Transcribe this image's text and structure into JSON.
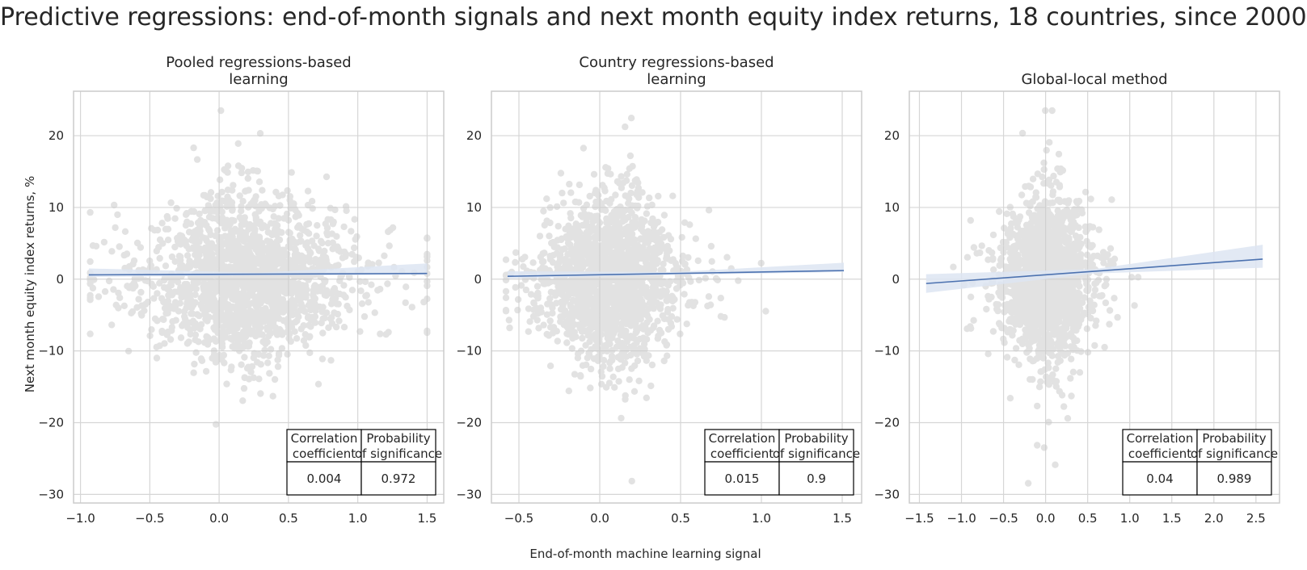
{
  "title": "Predictive regressions: end-of-month signals and next month equity index returns, 18 countries, since 2000",
  "xlabel": "End-of-month machine learning signal",
  "ylabel": "Next month equity index returns, %",
  "colors": {
    "points": "#cccccc",
    "line": "#4c72b0",
    "band": "#dde5f2",
    "grid": "#d6d6d6",
    "axes": "#cccccc"
  },
  "chart_data": [
    {
      "type": "scatter",
      "title": [
        "Pooled regressions-based",
        "learning"
      ],
      "xlim": [
        -1.05,
        1.62
      ],
      "ylim": [
        -31.2,
        26.2
      ],
      "xticks": [
        -1.0,
        -0.5,
        0.0,
        0.5,
        1.0,
        1.5
      ],
      "xtick_labels": [
        "−1.0",
        "−0.5",
        "0.0",
        "0.5",
        "1.0",
        "1.5"
      ],
      "yticks": [
        -30,
        -20,
        -10,
        0,
        10,
        20
      ],
      "ytick_labels": [
        "−30",
        "−20",
        "−10",
        "0",
        "10",
        "20"
      ],
      "regression": {
        "x": [
          -0.94,
          1.5
        ],
        "y": [
          0.6,
          0.8
        ],
        "ci": [
          [
            0.9,
            0.3
          ],
          [
            0.2,
            0.2
          ],
          [
            1.4,
            0.2
          ]
        ]
      },
      "scatter_shape": {
        "center": 0.2,
        "spread": 0.33,
        "ystd": 6.0,
        "xmin": -0.93,
        "xmax": 1.5,
        "n": 1800,
        "seed": 11
      },
      "table": {
        "headers": [
          [
            "Correlation",
            "coefficient"
          ],
          [
            "Probability",
            "of significance"
          ]
        ],
        "values": [
          "0.004",
          "0.972"
        ]
      }
    },
    {
      "type": "scatter",
      "title": [
        "Country regressions-based",
        "learning"
      ],
      "xlim": [
        -0.67,
        1.62
      ],
      "ylim": [
        -31.2,
        26.2
      ],
      "xticks": [
        -0.5,
        0.0,
        0.5,
        1.0,
        1.5
      ],
      "xtick_labels": [
        "−0.5",
        "0.0",
        "0.5",
        "1.0",
        "1.5"
      ],
      "yticks": [
        -30,
        -20,
        -10,
        0,
        10,
        20
      ],
      "ytick_labels": [
        "−30",
        "−20",
        "−10",
        "0",
        "10",
        "20"
      ],
      "regression": {
        "x": [
          -0.57,
          1.51
        ],
        "y": [
          0.4,
          1.2
        ],
        "ci": [
          [
            0.7,
            0.3
          ],
          [
            0.2,
            0.2
          ],
          [
            1.1,
            0.2
          ]
        ]
      },
      "scatter_shape": {
        "center": 0.05,
        "spread": 0.18,
        "ystd": 6.0,
        "xmin": -0.58,
        "xmax": 1.51,
        "n": 1800,
        "seed": 23
      },
      "table": {
        "headers": [
          [
            "Correlation",
            "coefficient"
          ],
          [
            "Probability",
            "of significance"
          ]
        ],
        "values": [
          "0.015",
          "0.9"
        ]
      }
    },
    {
      "type": "scatter",
      "title": [
        "Global-local method"
      ],
      "xlim": [
        -1.62,
        2.78
      ],
      "ylim": [
        -31.2,
        26.2
      ],
      "xticks": [
        -1.5,
        -1.0,
        -0.5,
        0.0,
        0.5,
        1.0,
        1.5,
        2.0,
        2.5
      ],
      "xtick_labels": [
        "−1.5",
        "−1.0",
        "−0.5",
        "0.0",
        "0.5",
        "1.0",
        "1.5",
        "2.0",
        "2.5"
      ],
      "yticks": [
        -30,
        -20,
        -10,
        0,
        10,
        20
      ],
      "ytick_labels": [
        "−30",
        "−20",
        "−10",
        "0",
        "10",
        "20"
      ],
      "regression": {
        "x": [
          -1.42,
          2.58
        ],
        "y": [
          -0.6,
          2.8
        ],
        "ci": [
          [
            1.3,
            1.3
          ],
          [
            0.3,
            0.3
          ],
          [
            2.0,
            1.2
          ]
        ]
      },
      "scatter_shape": {
        "center": 0.0,
        "spread": 0.22,
        "ystd": 6.0,
        "xmin": -1.42,
        "xmax": 2.58,
        "n": 1800,
        "seed": 37
      },
      "table": {
        "headers": [
          [
            "Correlation",
            "coefficient"
          ],
          [
            "Probability",
            "of significance"
          ]
        ],
        "values": [
          "0.04",
          "0.989"
        ]
      }
    }
  ]
}
